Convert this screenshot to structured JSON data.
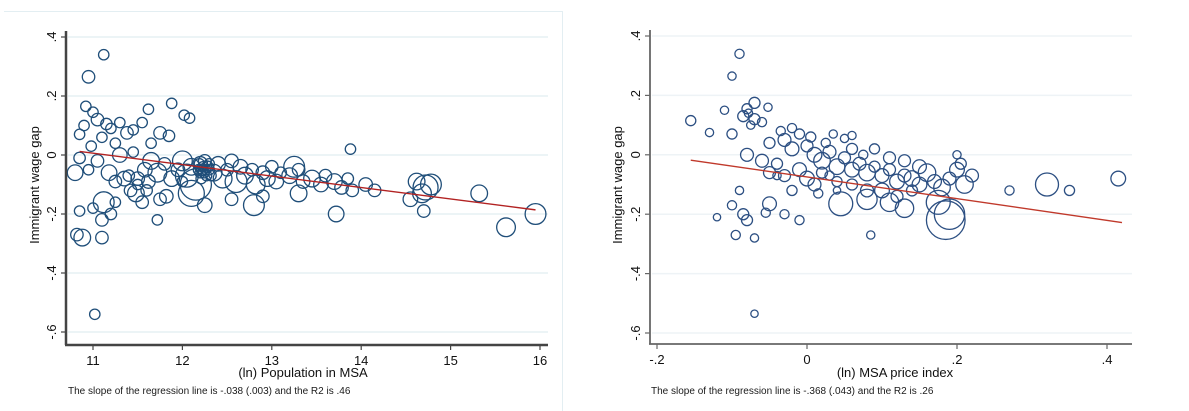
{
  "chart_data": [
    {
      "type": "scatter",
      "title": "",
      "xlabel": "(ln) Population in MSA",
      "ylabel": "Immigrant wage gap",
      "note": "The slope of the regression line is -.038 (.003) and the R2 is .46",
      "xlim": [
        10.7,
        16.05
      ],
      "ylim": [
        -0.62,
        0.42
      ],
      "xticks": [
        11,
        12,
        13,
        14,
        15,
        16
      ],
      "xtick_labels": [
        "11",
        "12",
        "13",
        "14",
        "15",
        "16"
      ],
      "yticks": [
        0.4,
        0.2,
        0,
        -0.2,
        -0.4,
        -0.6
      ],
      "ytick_labels": [
        ".4",
        ".2",
        "0",
        "-.2",
        "-.4",
        "-.6"
      ],
      "grid": true,
      "marker": "hollow-circle-weighted",
      "fit_line": {
        "slope": -0.038,
        "slope_se": 0.003,
        "r2": 0.46,
        "x0": 10.85,
        "y0": 0.012,
        "x1": 15.95,
        "y1": -0.186
      },
      "colors": {
        "marker": "#1f4e79",
        "fit": "#b22222",
        "grid": "#e6f0f4",
        "axis": "#444444"
      },
      "points": [
        [
          11.12,
          0.34,
          1
        ],
        [
          10.95,
          0.265,
          1.2
        ],
        [
          10.92,
          0.165,
          1
        ],
        [
          11.0,
          0.145,
          1
        ],
        [
          11.05,
          0.12,
          1.2
        ],
        [
          10.9,
          0.1,
          1
        ],
        [
          10.85,
          0.07,
          1
        ],
        [
          11.15,
          0.105,
          1.1
        ],
        [
          11.2,
          0.09,
          1
        ],
        [
          11.3,
          0.11,
          1
        ],
        [
          11.38,
          0.075,
          1.2
        ],
        [
          11.1,
          0.06,
          1
        ],
        [
          10.98,
          0.03,
          1
        ],
        [
          11.25,
          0.04,
          1
        ],
        [
          11.45,
          0.085,
          1
        ],
        [
          11.62,
          0.155,
          1
        ],
        [
          11.88,
          0.175,
          1
        ],
        [
          12.02,
          0.135,
          1
        ],
        [
          12.08,
          0.125,
          1
        ],
        [
          11.55,
          0.11,
          1
        ],
        [
          11.75,
          0.075,
          1.2
        ],
        [
          11.65,
          0.04,
          1
        ],
        [
          11.85,
          0.065,
          1.1
        ],
        [
          11.3,
          0.0,
          1.4
        ],
        [
          11.45,
          0.01,
          1
        ],
        [
          10.8,
          -0.06,
          1.5
        ],
        [
          10.85,
          -0.01,
          1.1
        ],
        [
          10.95,
          -0.05,
          1
        ],
        [
          11.05,
          -0.02,
          1.2
        ],
        [
          11.18,
          -0.06,
          1.5
        ],
        [
          11.25,
          -0.09,
          1.2
        ],
        [
          11.35,
          -0.08,
          1.4
        ],
        [
          11.4,
          -0.07,
          1.1
        ],
        [
          11.5,
          -0.08,
          1.3
        ],
        [
          11.58,
          -0.05,
          1.4
        ],
        [
          11.65,
          -0.02,
          1.6
        ],
        [
          11.72,
          -0.06,
          1.8
        ],
        [
          11.8,
          -0.03,
          1.2
        ],
        [
          11.88,
          -0.08,
          1.5
        ],
        [
          11.95,
          -0.05,
          1.3
        ],
        [
          12.0,
          -0.02,
          1.9
        ],
        [
          12.05,
          -0.07,
          2.2
        ],
        [
          12.1,
          -0.04,
          1.6
        ],
        [
          12.15,
          -0.1,
          3.0
        ],
        [
          12.2,
          -0.03,
          1.4
        ],
        [
          12.25,
          -0.02,
          1.2
        ],
        [
          12.28,
          -0.04,
          1.1
        ],
        [
          12.3,
          -0.03,
          1.0
        ],
        [
          12.22,
          -0.05,
          1.1
        ],
        [
          12.35,
          -0.06,
          1.6
        ],
        [
          12.4,
          -0.03,
          1.4
        ],
        [
          12.45,
          -0.08,
          1.8
        ],
        [
          12.5,
          -0.05,
          1.2
        ],
        [
          12.55,
          -0.02,
          1.3
        ],
        [
          12.6,
          -0.09,
          2.1
        ],
        [
          12.65,
          -0.04,
          1.4
        ],
        [
          12.7,
          -0.07,
          1.6
        ],
        [
          12.78,
          -0.05,
          1.2
        ],
        [
          12.82,
          -0.1,
          1.8
        ],
        [
          12.9,
          -0.06,
          1.3
        ],
        [
          12.95,
          -0.08,
          1.5
        ],
        [
          13.0,
          -0.04,
          1.2
        ],
        [
          13.05,
          -0.09,
          1.4
        ],
        [
          13.1,
          -0.06,
          1.1
        ],
        [
          13.2,
          -0.07,
          1.5
        ],
        [
          13.3,
          -0.05,
          1.2
        ],
        [
          13.35,
          -0.09,
          1.3
        ],
        [
          13.45,
          -0.08,
          1.6
        ],
        [
          13.55,
          -0.1,
          1.4
        ],
        [
          13.6,
          -0.07,
          1.2
        ],
        [
          13.7,
          -0.09,
          1.5
        ],
        [
          13.78,
          -0.11,
          1.3
        ],
        [
          13.85,
          -0.08,
          1.1
        ],
        [
          13.9,
          -0.12,
          1.2
        ],
        [
          14.05,
          -0.1,
          1.3
        ],
        [
          14.15,
          -0.12,
          1.2
        ],
        [
          13.88,
          0.02,
          1.0
        ],
        [
          13.72,
          -0.2,
          1.5
        ],
        [
          13.3,
          -0.13,
          1.6
        ],
        [
          13.25,
          -0.04,
          2.0
        ],
        [
          14.62,
          -0.09,
          1.6
        ],
        [
          14.72,
          -0.11,
          2.4
        ],
        [
          14.78,
          -0.1,
          2.0
        ],
        [
          14.68,
          -0.13,
          1.8
        ],
        [
          14.55,
          -0.15,
          1.4
        ],
        [
          14.7,
          -0.19,
          1.2
        ],
        [
          15.32,
          -0.13,
          1.6
        ],
        [
          15.62,
          -0.245,
          1.8
        ],
        [
          15.95,
          -0.2,
          2.0
        ],
        [
          11.0,
          -0.18,
          1.0
        ],
        [
          10.85,
          -0.19,
          1.0
        ],
        [
          10.82,
          -0.27,
          1.2
        ],
        [
          10.88,
          -0.28,
          1.6
        ],
        [
          11.1,
          -0.28,
          1.2
        ],
        [
          11.1,
          -0.22,
          1.2
        ],
        [
          11.12,
          -0.16,
          2.0
        ],
        [
          11.2,
          -0.2,
          1.1
        ],
        [
          11.25,
          -0.16,
          1.0
        ],
        [
          11.48,
          -0.13,
          1.6
        ],
        [
          11.55,
          -0.16,
          1.2
        ],
        [
          11.6,
          -0.12,
          1.1
        ],
        [
          11.72,
          -0.22,
          1.0
        ],
        [
          11.75,
          -0.15,
          1.2
        ],
        [
          11.82,
          -0.14,
          1.3
        ],
        [
          12.1,
          -0.13,
          2.5
        ],
        [
          12.25,
          -0.17,
          1.4
        ],
        [
          12.55,
          -0.15,
          1.2
        ],
        [
          12.8,
          -0.17,
          2.0
        ],
        [
          12.9,
          -0.14,
          1.2
        ],
        [
          11.02,
          -0.54,
          1.0
        ],
        [
          11.42,
          -0.12,
          1.2
        ],
        [
          11.5,
          -0.1,
          1.0
        ],
        [
          11.62,
          -0.09,
          1.3
        ],
        [
          12.0,
          -0.09,
          1.0
        ],
        [
          12.18,
          -0.05,
          1.0
        ],
        [
          12.2,
          -0.06,
          1.0
        ],
        [
          12.24,
          -0.06,
          1.0
        ],
        [
          12.26,
          -0.05,
          1.0
        ],
        [
          12.27,
          -0.07,
          1.0
        ],
        [
          12.23,
          -0.04,
          1.0
        ],
        [
          12.21,
          -0.08,
          1.0
        ],
        [
          12.19,
          -0.03,
          1.0
        ],
        [
          12.32,
          -0.07,
          1.0
        ],
        [
          12.3,
          -0.05,
          1.0
        ]
      ]
    },
    {
      "type": "scatter",
      "title": "",
      "xlabel": "(ln) MSA price index",
      "ylabel": "Immigrant wage gap",
      "note": "The slope of the regression line is -.368 (.043) and the R2 is .26",
      "xlim": [
        -0.21,
        0.43
      ],
      "ylim": [
        -0.62,
        0.42
      ],
      "xticks": [
        -0.2,
        0,
        0.2,
        0.4
      ],
      "xtick_labels": [
        "-.2",
        "0",
        ".2",
        ".4"
      ],
      "yticks": [
        0.4,
        0.2,
        0,
        -0.2,
        -0.4,
        -0.6
      ],
      "ytick_labels": [
        ".4",
        ".2",
        "0",
        "-.2",
        "-.4",
        "-.6"
      ],
      "grid": true,
      "marker": "hollow-circle-weighted",
      "fit_line": {
        "slope": -0.368,
        "slope_se": 0.043,
        "r2": 0.26,
        "x0": -0.155,
        "y0": -0.018,
        "x1": 0.42,
        "y1": -0.228
      },
      "colors": {
        "marker": "#2c4f82",
        "fit": "#c0392b",
        "grid": "#eef3f6",
        "axis": "#666666"
      },
      "points": [
        [
          -0.155,
          0.115,
          1.1
        ],
        [
          -0.13,
          0.075,
          0.9
        ],
        [
          -0.09,
          0.34,
          1.0
        ],
        [
          -0.1,
          0.265,
          0.9
        ],
        [
          -0.11,
          0.15,
          0.9
        ],
        [
          -0.08,
          0.155,
          1.1
        ],
        [
          -0.085,
          0.13,
          1.2
        ],
        [
          -0.078,
          0.14,
          0.9
        ],
        [
          -0.07,
          0.175,
          1.2
        ],
        [
          -0.07,
          0.12,
          1.2
        ],
        [
          -0.06,
          0.11,
          1.0
        ],
        [
          -0.052,
          0.16,
          0.9
        ],
        [
          -0.075,
          0.1,
          0.9
        ],
        [
          -0.1,
          0.07,
          1.1
        ],
        [
          -0.02,
          0.09,
          1.0
        ],
        [
          -0.01,
          0.07,
          1.1
        ],
        [
          -0.08,
          0.0,
          1.4
        ],
        [
          -0.05,
          0.04,
          1.2
        ],
        [
          -0.03,
          0.05,
          1.4
        ],
        [
          -0.02,
          0.02,
          1.5
        ],
        [
          0.0,
          0.03,
          1.3
        ],
        [
          0.01,
          0.0,
          1.6
        ],
        [
          0.02,
          -0.02,
          1.8
        ],
        [
          0.03,
          0.01,
          1.4
        ],
        [
          0.04,
          -0.04,
          1.7
        ],
        [
          0.05,
          -0.01,
          1.3
        ],
        [
          0.06,
          -0.05,
          1.6
        ],
        [
          0.07,
          -0.03,
          1.4
        ],
        [
          0.08,
          -0.06,
          1.8
        ],
        [
          0.09,
          -0.04,
          1.2
        ],
        [
          0.1,
          -0.07,
          1.5
        ],
        [
          0.11,
          -0.05,
          1.3
        ],
        [
          0.12,
          -0.09,
          1.6
        ],
        [
          0.13,
          -0.07,
          1.4
        ],
        [
          0.14,
          -0.08,
          1.7
        ],
        [
          0.15,
          -0.1,
          1.6
        ],
        [
          0.16,
          -0.06,
          1.9
        ],
        [
          0.17,
          -0.09,
          1.5
        ],
        [
          0.18,
          -0.11,
          1.8
        ],
        [
          0.19,
          -0.08,
          1.4
        ],
        [
          0.2,
          -0.05,
          1.6
        ],
        [
          0.21,
          -0.1,
          1.9
        ],
        [
          0.205,
          -0.03,
          1.2
        ],
        [
          0.2,
          0.0,
          0.9
        ],
        [
          0.22,
          -0.07,
          1.4
        ],
        [
          -0.04,
          -0.03,
          1.2
        ],
        [
          -0.03,
          -0.07,
          1.3
        ],
        [
          -0.01,
          -0.05,
          1.5
        ],
        [
          0.0,
          -0.08,
          1.6
        ],
        [
          0.01,
          -0.1,
          1.4
        ],
        [
          0.02,
          -0.06,
          1.2
        ],
        [
          -0.05,
          -0.06,
          1.3
        ],
        [
          -0.06,
          -0.02,
          1.4
        ],
        [
          0.03,
          -0.07,
          1.0
        ],
        [
          0.04,
          -0.09,
          1.1
        ],
        [
          0.06,
          -0.1,
          1.2
        ],
        [
          0.08,
          -0.12,
          1.4
        ],
        [
          0.1,
          -0.12,
          1.6
        ],
        [
          0.12,
          -0.14,
          1.3
        ],
        [
          0.14,
          -0.12,
          1.2
        ],
        [
          0.045,
          -0.165,
          2.6
        ],
        [
          0.08,
          -0.15,
          2.2
        ],
        [
          0.11,
          -0.16,
          2.0
        ],
        [
          0.13,
          -0.18,
          2.0
        ],
        [
          0.185,
          -0.22,
          4.2
        ],
        [
          0.19,
          -0.2,
          3.3
        ],
        [
          0.175,
          -0.16,
          2.6
        ],
        [
          0.27,
          -0.12,
          1.0
        ],
        [
          0.32,
          -0.1,
          2.5
        ],
        [
          0.35,
          -0.12,
          1.1
        ],
        [
          0.415,
          -0.08,
          1.6
        ],
        [
          -0.09,
          -0.12,
          0.9
        ],
        [
          -0.1,
          -0.17,
          1.0
        ],
        [
          -0.12,
          -0.21,
          0.8
        ],
        [
          -0.085,
          -0.2,
          1.2
        ],
        [
          -0.08,
          -0.22,
          1.2
        ],
        [
          -0.05,
          -0.165,
          1.5
        ],
        [
          -0.055,
          -0.195,
          1.0
        ],
        [
          -0.095,
          -0.27,
          1.0
        ],
        [
          -0.07,
          -0.28,
          0.9
        ],
        [
          -0.03,
          -0.2,
          1.0
        ],
        [
          -0.01,
          -0.22,
          1.0
        ],
        [
          0.085,
          -0.27,
          0.9
        ],
        [
          -0.07,
          -0.535,
          0.8
        ],
        [
          -0.04,
          -0.07,
          0.9
        ],
        [
          -0.02,
          -0.12,
          1.1
        ],
        [
          0.015,
          -0.13,
          1.0
        ],
        [
          0.04,
          -0.12,
          0.8
        ],
        [
          0.005,
          0.06,
          1.1
        ],
        [
          0.025,
          0.04,
          1.0
        ],
        [
          0.05,
          0.055,
          0.9
        ],
        [
          0.06,
          0.02,
          1.2
        ],
        [
          0.09,
          0.02,
          1.1
        ],
        [
          0.11,
          -0.01,
          1.3
        ],
        [
          0.13,
          -0.02,
          1.3
        ],
        [
          0.15,
          -0.04,
          1.5
        ],
        [
          0.06,
          0.065,
          0.9
        ],
        [
          0.035,
          0.07,
          0.9
        ],
        [
          -0.035,
          0.08,
          1.0
        ],
        [
          0.075,
          0.0,
          1.0
        ]
      ]
    }
  ]
}
